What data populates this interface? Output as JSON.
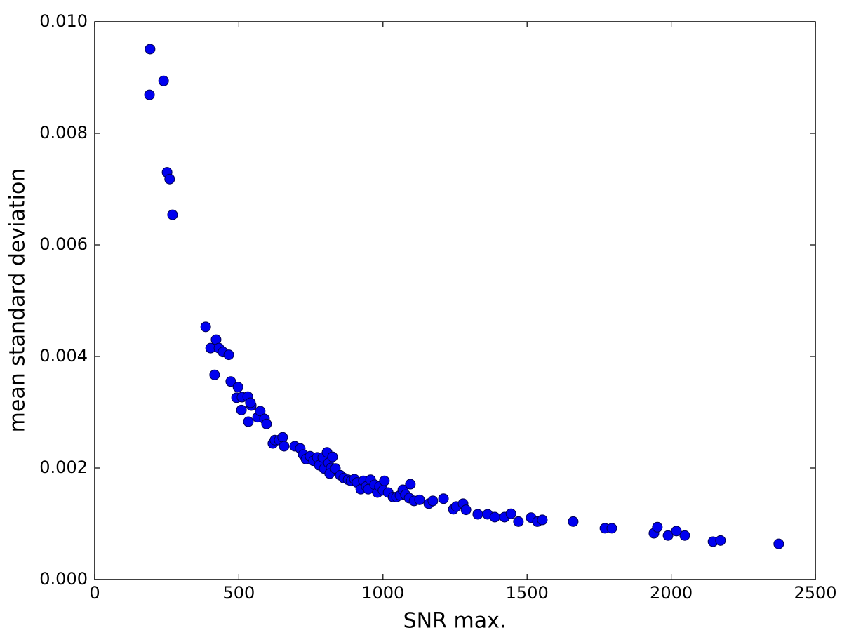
{
  "chart_data": {
    "type": "scatter",
    "x_label": "SNR max.",
    "y_label": "mean standard deviation",
    "color": "#0000f0",
    "edgecolor": "#000050",
    "x": [
      192,
      190,
      239,
      251,
      260,
      270,
      385,
      402,
      421,
      416,
      431,
      445,
      465,
      472,
      492,
      497,
      511,
      509,
      531,
      533,
      543,
      540,
      565,
      574,
      589,
      596,
      618,
      625,
      640,
      652,
      657,
      694,
      713,
      723,
      733,
      747,
      759,
      772,
      779,
      791,
      796,
      806,
      811,
      820,
      825,
      815,
      835,
      852,
      864,
      879,
      889,
      901,
      910,
      923,
      932,
      942,
      949,
      957,
      971,
      981,
      988,
      1000,
      1005,
      1018,
      1035,
      1047,
      1059,
      1069,
      1078,
      1091,
      1095,
      1108,
      1127,
      1159,
      1173,
      1210,
      1244,
      1254,
      1278,
      1288,
      1329,
      1363,
      1388,
      1422,
      1444,
      1470,
      1514,
      1536,
      1553,
      1660,
      1770,
      1794,
      1940,
      1952,
      1989,
      2018,
      2047,
      2145,
      2171,
      2373
    ],
    "values": [
      0.00951,
      0.00869,
      0.00894,
      0.0073,
      0.00718,
      0.00654,
      0.00453,
      0.00415,
      0.0043,
      0.00367,
      0.00415,
      0.00408,
      0.00403,
      0.00355,
      0.00326,
      0.00345,
      0.00327,
      0.00304,
      0.00328,
      0.00283,
      0.00312,
      0.00317,
      0.00291,
      0.00302,
      0.00288,
      0.00279,
      0.00244,
      0.0025,
      0.0025,
      0.00255,
      0.00239,
      0.00239,
      0.00235,
      0.00224,
      0.00216,
      0.00221,
      0.00213,
      0.00219,
      0.00205,
      0.00219,
      0.00199,
      0.00228,
      0.00209,
      0.002,
      0.0022,
      0.0019,
      0.00199,
      0.00187,
      0.00182,
      0.00179,
      0.00177,
      0.0018,
      0.00174,
      0.00162,
      0.00177,
      0.00167,
      0.00162,
      0.00179,
      0.0017,
      0.00156,
      0.00167,
      0.0016,
      0.00177,
      0.00156,
      0.00148,
      0.00148,
      0.00151,
      0.00161,
      0.00152,
      0.00146,
      0.00171,
      0.00141,
      0.00143,
      0.00136,
      0.00141,
      0.00145,
      0.00126,
      0.00131,
      0.00136,
      0.00125,
      0.00117,
      0.00117,
      0.00112,
      0.00112,
      0.00118,
      0.00104,
      0.00111,
      0.00104,
      0.00107,
      0.00104,
      0.00092,
      0.00092,
      0.00083,
      0.00094,
      0.00079,
      0.00087,
      0.00079,
      0.00068,
      0.0007,
      0.00064
    ],
    "xlim": [
      0,
      2500
    ],
    "xticks": [
      0,
      500,
      1000,
      1500,
      2000,
      2500
    ],
    "ylim": [
      0,
      0.01
    ],
    "yticks": [
      {
        "value": 0,
        "label": "0.000"
      },
      {
        "value": 0.002,
        "label": "0.002"
      },
      {
        "value": 0.004,
        "label": "0.004"
      },
      {
        "value": 0.006,
        "label": "0.006"
      },
      {
        "value": 0.008,
        "label": "0.008"
      },
      {
        "value": 0.01,
        "label": "0.010"
      }
    ]
  }
}
